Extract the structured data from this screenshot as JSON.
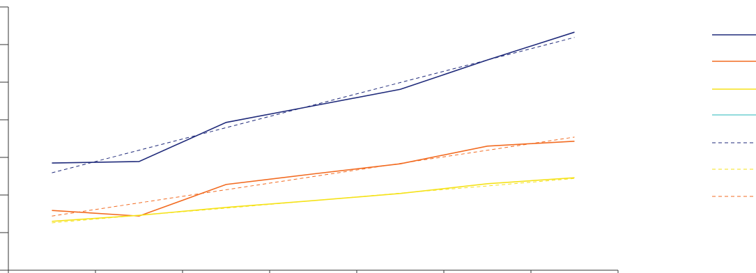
{
  "chart_data": {
    "type": "line",
    "categories": [
      null,
      null,
      null,
      null,
      null,
      null,
      null
    ],
    "series": [
      {
        "color": "#1f2a7a",
        "values": [
          2.85,
          2.89,
          3.93,
          4.37,
          4.81,
          5.59,
          6.33
        ]
      },
      {
        "color": "#f26b21",
        "values": [
          1.59,
          1.44,
          2.28,
          2.56,
          2.83,
          3.3,
          3.43
        ]
      },
      {
        "color": "#f5e21a",
        "values": [
          1.3,
          1.46,
          1.67,
          1.85,
          2.04,
          2.3,
          2.46
        ]
      },
      {
        "color": "#6ecfd0",
        "values": [
          null,
          null,
          null,
          null,
          null,
          null,
          null
        ]
      },
      {
        "color": "#1f2a7a",
        "dashed": true,
        "values": [
          2.59,
          3.19,
          3.79,
          4.39,
          4.99,
          5.59,
          6.19
        ]
      },
      {
        "color": "#f5e21a",
        "dashed": true,
        "values": [
          1.26,
          1.46,
          1.65,
          1.85,
          2.05,
          2.24,
          2.44
        ]
      },
      {
        "color": "#f26b21",
        "dashed": true,
        "values": [
          1.44,
          1.79,
          2.14,
          2.49,
          2.84,
          3.19,
          3.54
        ]
      }
    ],
    "ylim": [
      0,
      7
    ],
    "yticks": [
      0,
      1,
      2,
      3,
      4,
      5,
      6,
      7
    ],
    "legend": "right"
  }
}
